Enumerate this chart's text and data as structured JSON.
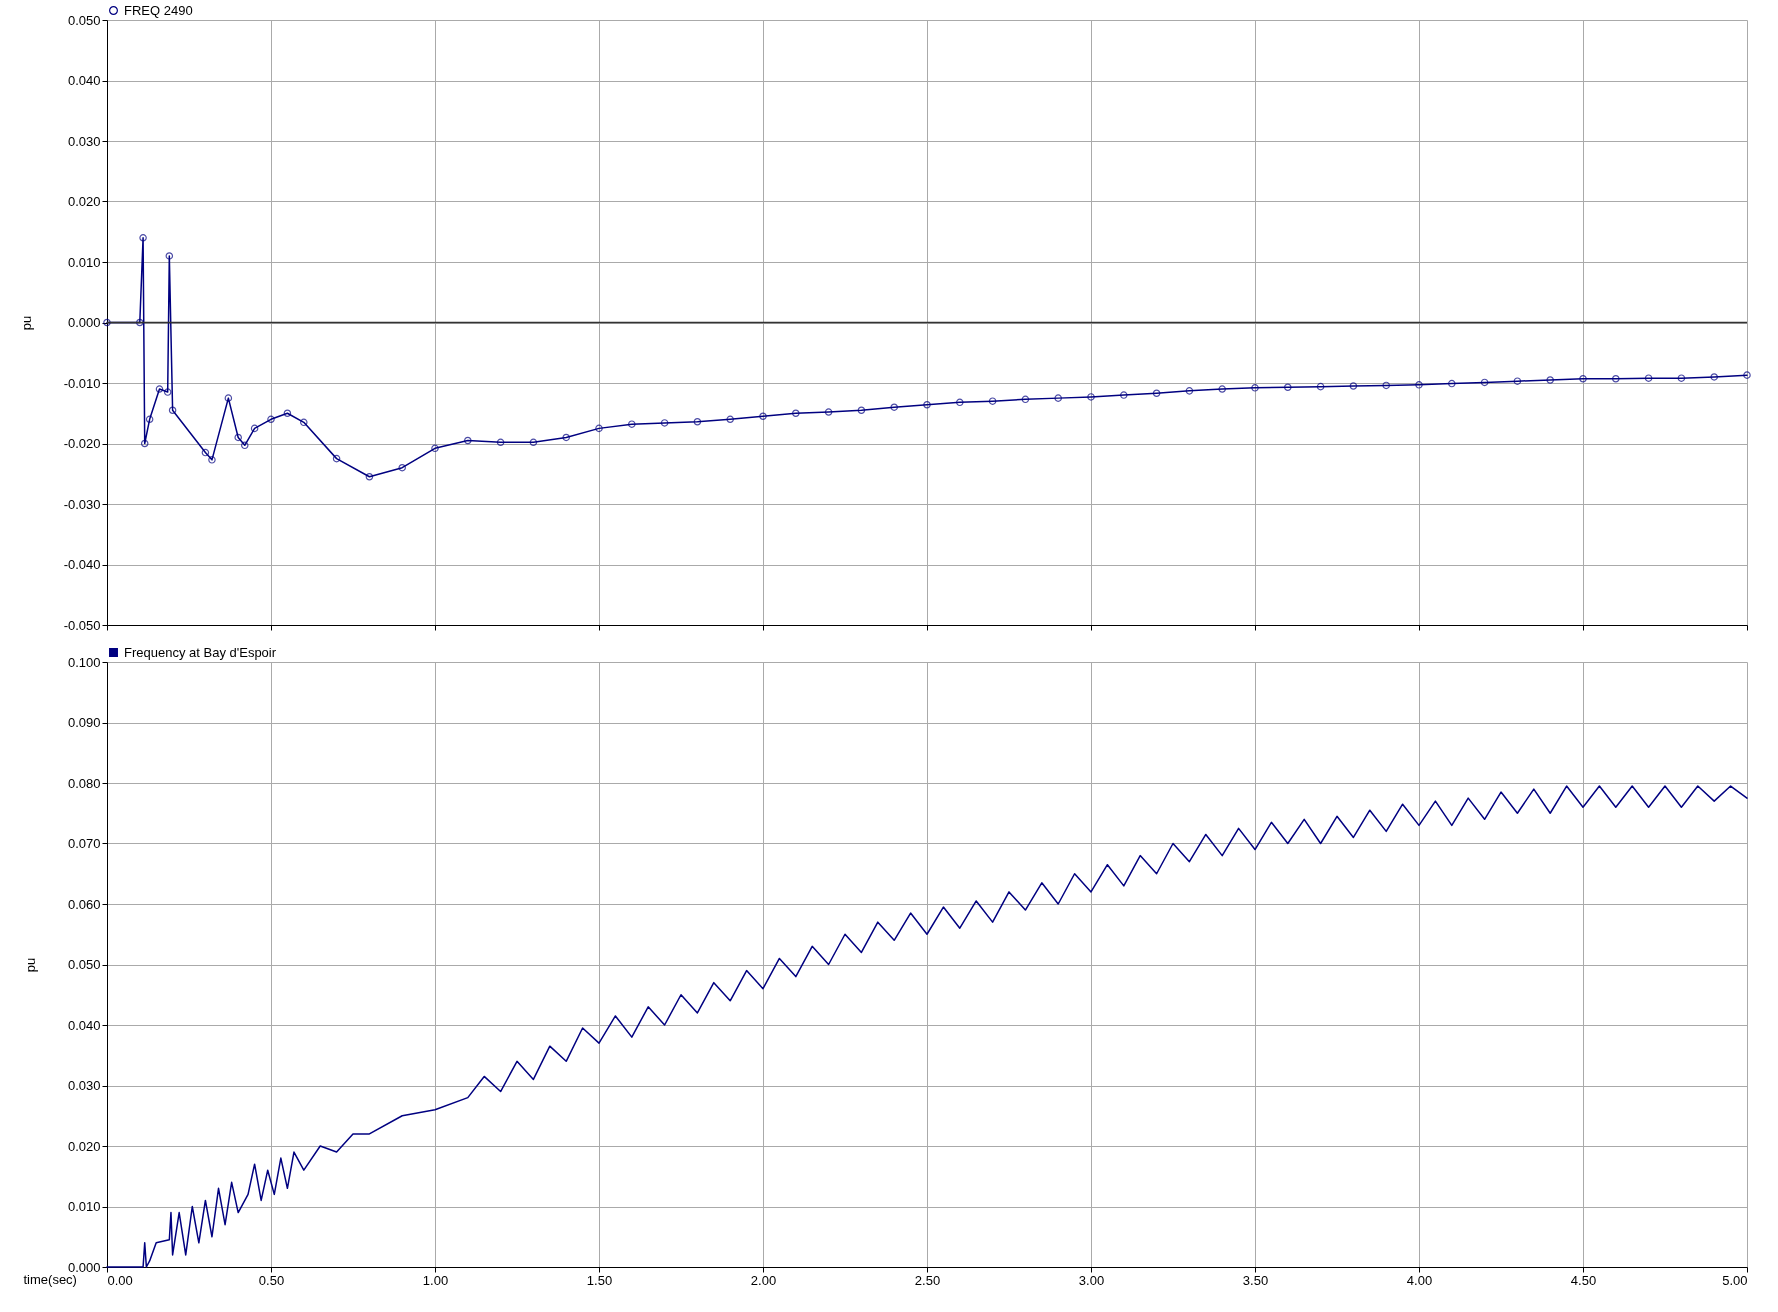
{
  "chart_data": [
    {
      "type": "line",
      "ylabel": "pu",
      "xlim": [
        0,
        5
      ],
      "ylim": [
        -0.05,
        0.05
      ],
      "xticks": [
        0,
        0.5,
        1,
        1.5,
        2,
        2.5,
        3,
        3.5,
        4,
        4.5,
        5
      ],
      "yticks": [
        {
          "value": -0.05,
          "label": "-0.050"
        },
        {
          "value": -0.04,
          "label": "-0.040"
        },
        {
          "value": -0.03,
          "label": "-0.030"
        },
        {
          "value": -0.02,
          "label": "-0.020"
        },
        {
          "value": -0.01,
          "label": "-0.010"
        },
        {
          "value": 0,
          "label": "0.000"
        },
        {
          "value": 0.01,
          "label": "0.010"
        },
        {
          "value": 0.02,
          "label": "0.020"
        },
        {
          "value": 0.03,
          "label": "0.030"
        },
        {
          "value": 0.04,
          "label": "0.040"
        },
        {
          "value": 0.05,
          "label": "0.050"
        }
      ],
      "tick_labels": "y",
      "grid": true,
      "legend": "top left",
      "marker": "circle",
      "ref_lines": [
        {
          "axis": "y",
          "value": 0,
          "color": "#333333"
        }
      ],
      "series": [
        {
          "name": "FREQ 2490",
          "color": "#000080",
          "x": [
            0,
            0.1,
            0.11,
            0.115,
            0.13,
            0.16,
            0.185,
            0.19,
            0.2,
            0.3,
            0.32,
            0.37,
            0.4,
            0.42,
            0.45,
            0.5,
            0.55,
            0.6,
            0.7,
            0.8,
            0.9,
            1.0,
            1.1,
            1.2,
            1.3,
            1.4,
            1.5,
            1.6,
            1.7,
            1.8,
            1.9,
            2.0,
            2.1,
            2.2,
            2.3,
            2.4,
            2.5,
            2.6,
            2.7,
            2.8,
            2.9,
            3.0,
            3.1,
            3.2,
            3.3,
            3.4,
            3.5,
            3.6,
            3.7,
            3.8,
            3.9,
            4.0,
            4.1,
            4.2,
            4.3,
            4.4,
            4.5,
            4.6,
            4.7,
            4.8,
            4.9,
            5.0
          ],
          "values": [
            0,
            0,
            0.014,
            -0.02,
            -0.016,
            -0.011,
            -0.0115,
            0.011,
            -0.0145,
            -0.0215,
            -0.0227,
            -0.0125,
            -0.019,
            -0.0203,
            -0.0175,
            -0.016,
            -0.015,
            -0.0165,
            -0.0225,
            -0.0255,
            -0.024,
            -0.0208,
            -0.0195,
            -0.0198,
            -0.0198,
            -0.019,
            -0.0175,
            -0.0168,
            -0.0166,
            -0.0164,
            -0.016,
            -0.0155,
            -0.015,
            -0.0148,
            -0.0145,
            -0.014,
            -0.0136,
            -0.0132,
            -0.013,
            -0.0127,
            -0.0125,
            -0.0123,
            -0.012,
            -0.0117,
            -0.0113,
            -0.011,
            -0.0108,
            -0.0107,
            -0.0106,
            -0.0105,
            -0.0104,
            -0.0103,
            -0.0101,
            -0.0099,
            -0.0097,
            -0.0095,
            -0.0093,
            -0.0093,
            -0.0092,
            -0.0092,
            -0.009,
            -0.0087
          ]
        }
      ]
    },
    {
      "type": "line",
      "xlabel": "time(sec)",
      "ylabel": "pu",
      "xlim": [
        0,
        5
      ],
      "ylim": [
        0,
        0.1
      ],
      "xticks": [
        {
          "value": 0,
          "label": "0.00"
        },
        {
          "value": 0.5,
          "label": "0.50"
        },
        {
          "value": 1,
          "label": "1.00"
        },
        {
          "value": 1.5,
          "label": "1.50"
        },
        {
          "value": 2,
          "label": "2.00"
        },
        {
          "value": 2.5,
          "label": "2.50"
        },
        {
          "value": 3,
          "label": "3.00"
        },
        {
          "value": 3.5,
          "label": "3.50"
        },
        {
          "value": 4,
          "label": "4.00"
        },
        {
          "value": 4.5,
          "label": "4.50"
        },
        {
          "value": 5,
          "label": "5.00"
        }
      ],
      "yticks": [
        {
          "value": 0,
          "label": "0.000"
        },
        {
          "value": 0.01,
          "label": "0.010"
        },
        {
          "value": 0.02,
          "label": "0.020"
        },
        {
          "value": 0.03,
          "label": "0.030"
        },
        {
          "value": 0.04,
          "label": "0.040"
        },
        {
          "value": 0.05,
          "label": "0.050"
        },
        {
          "value": 0.06,
          "label": "0.060"
        },
        {
          "value": 0.07,
          "label": "0.070"
        },
        {
          "value": 0.08,
          "label": "0.080"
        },
        {
          "value": 0.09,
          "label": "0.090"
        },
        {
          "value": 0.1,
          "label": "0.100"
        }
      ],
      "grid": true,
      "legend": "top left",
      "series": [
        {
          "name": "Frequency at Bay d'Espoir",
          "color": "#000080",
          "x": [
            0,
            0.11,
            0.115,
            0.12,
            0.13,
            0.15,
            0.19,
            0.195,
            0.2,
            0.22,
            0.24,
            0.26,
            0.28,
            0.3,
            0.32,
            0.34,
            0.36,
            0.38,
            0.4,
            0.43,
            0.45,
            0.47,
            0.49,
            0.51,
            0.53,
            0.55,
            0.57,
            0.6,
            0.65,
            0.7,
            0.75,
            0.8,
            0.9,
            1.0,
            1.1,
            1.15,
            1.2,
            1.25,
            1.3,
            1.35,
            1.4,
            1.45,
            1.5,
            1.55,
            1.6,
            1.65,
            1.7,
            1.75,
            1.8,
            1.85,
            1.9,
            1.95,
            2.0,
            2.05,
            2.1,
            2.15,
            2.2,
            2.25,
            2.3,
            2.35,
            2.4,
            2.45,
            2.5,
            2.55,
            2.6,
            2.65,
            2.7,
            2.75,
            2.8,
            2.85,
            2.9,
            2.95,
            3.0,
            3.05,
            3.1,
            3.15,
            3.2,
            3.25,
            3.3,
            3.35,
            3.4,
            3.45,
            3.5,
            3.55,
            3.6,
            3.65,
            3.7,
            3.75,
            3.8,
            3.85,
            3.9,
            3.95,
            4.0,
            4.05,
            4.1,
            4.15,
            4.2,
            4.25,
            4.3,
            4.35,
            4.4,
            4.45,
            4.5,
            4.55,
            4.6,
            4.65,
            4.7,
            4.75,
            4.8,
            4.85,
            4.9,
            4.95,
            5.0
          ],
          "values": [
            0,
            0,
            0.004,
            0,
            0.001,
            0.004,
            0.0045,
            0.009,
            0.002,
            0.009,
            0.002,
            0.01,
            0.004,
            0.011,
            0.005,
            0.013,
            0.007,
            0.014,
            0.009,
            0.012,
            0.017,
            0.011,
            0.016,
            0.012,
            0.018,
            0.013,
            0.019,
            0.016,
            0.02,
            0.019,
            0.022,
            0.022,
            0.025,
            0.026,
            0.028,
            0.0315,
            0.029,
            0.034,
            0.031,
            0.0365,
            0.034,
            0.0395,
            0.037,
            0.0415,
            0.038,
            0.043,
            0.04,
            0.045,
            0.042,
            0.047,
            0.044,
            0.049,
            0.046,
            0.051,
            0.048,
            0.053,
            0.05,
            0.055,
            0.052,
            0.057,
            0.054,
            0.0585,
            0.055,
            0.0595,
            0.056,
            0.0605,
            0.057,
            0.062,
            0.059,
            0.0635,
            0.06,
            0.065,
            0.062,
            0.0665,
            0.063,
            0.068,
            0.065,
            0.07,
            0.067,
            0.0715,
            0.068,
            0.0725,
            0.069,
            0.0735,
            0.07,
            0.074,
            0.07,
            0.0745,
            0.071,
            0.0755,
            0.072,
            0.0765,
            0.073,
            0.077,
            0.073,
            0.0775,
            0.074,
            0.0785,
            0.075,
            0.079,
            0.075,
            0.0795,
            0.076,
            0.0795,
            0.076,
            0.0795,
            0.076,
            0.0795,
            0.076,
            0.0795,
            0.077,
            0.0795,
            0.0775
          ]
        }
      ]
    }
  ]
}
